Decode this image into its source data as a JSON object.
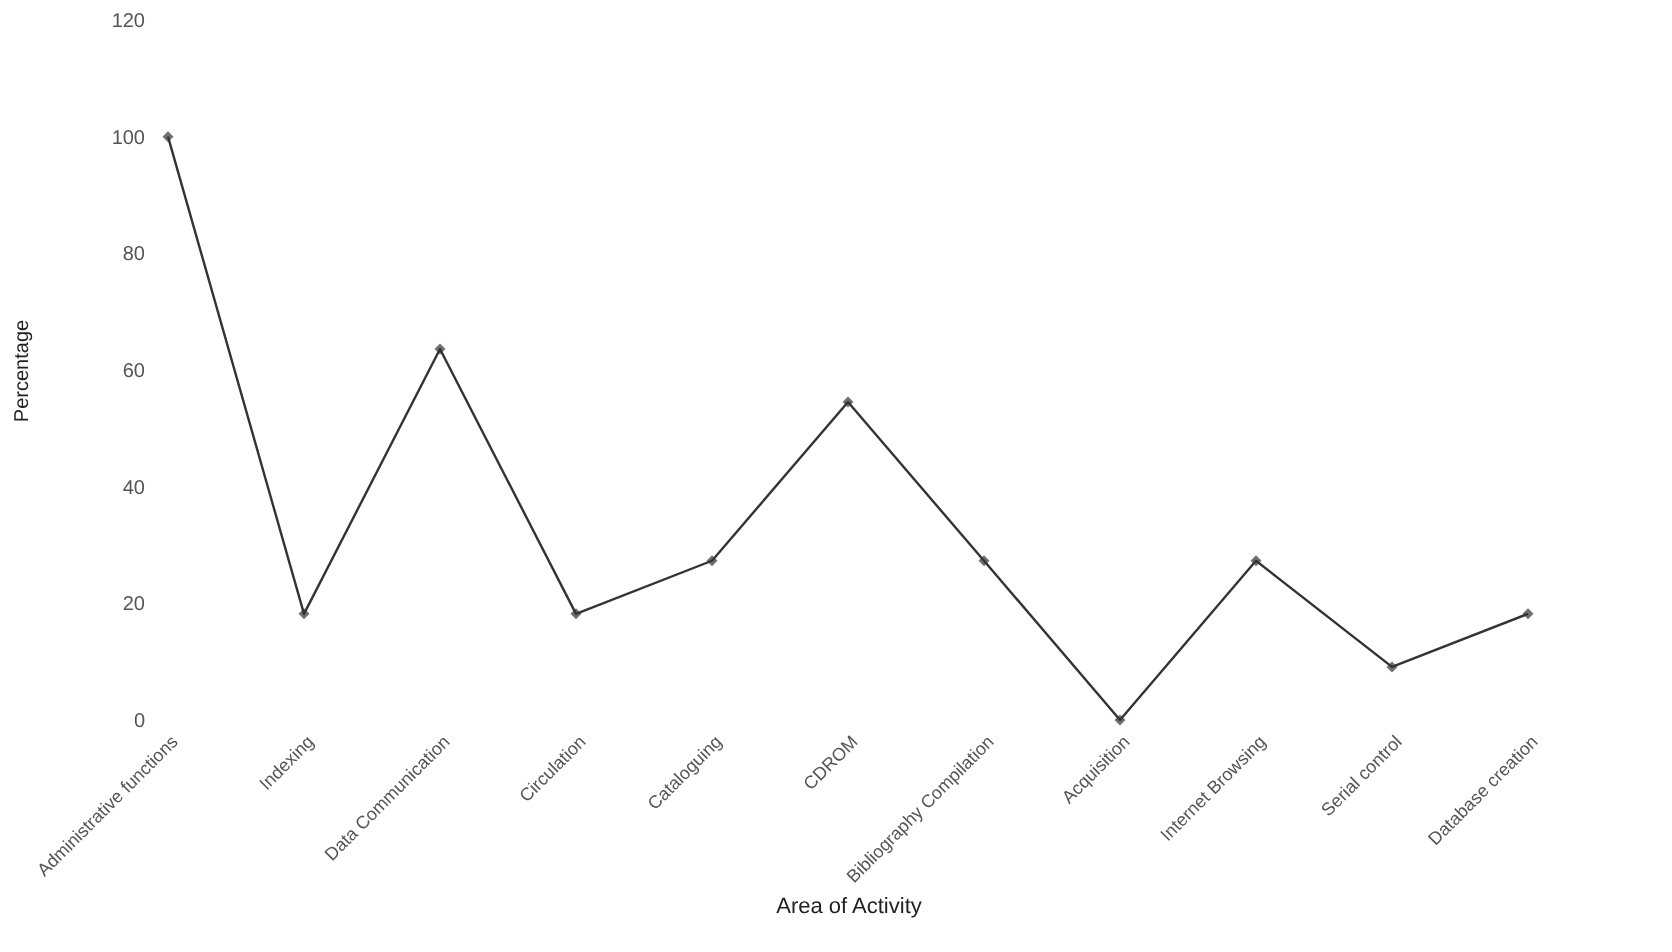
{
  "chart_data": {
    "type": "line",
    "xlabel": "Area of Activity",
    "ylabel": "Percentage",
    "categories": [
      "Administrative functions",
      "Indexing",
      "Data Communication",
      "Circulation",
      "Cataloguing",
      "CDROM",
      "Bibliography Compilation",
      "Acquisition",
      "Internet Browsing",
      "Serial control",
      "Database creation"
    ],
    "series": [
      {
        "color": "#333333",
        "values": [
          100,
          18.2,
          63.6,
          18.2,
          27.3,
          54.5,
          27.3,
          0,
          27.3,
          9.1,
          18.2
        ]
      }
    ],
    "ylim": [
      0,
      120
    ],
    "yticks": [
      0,
      20,
      40,
      60,
      80,
      100,
      120
    ],
    "grid": false,
    "marker": "diamond",
    "line_style": "solid"
  }
}
